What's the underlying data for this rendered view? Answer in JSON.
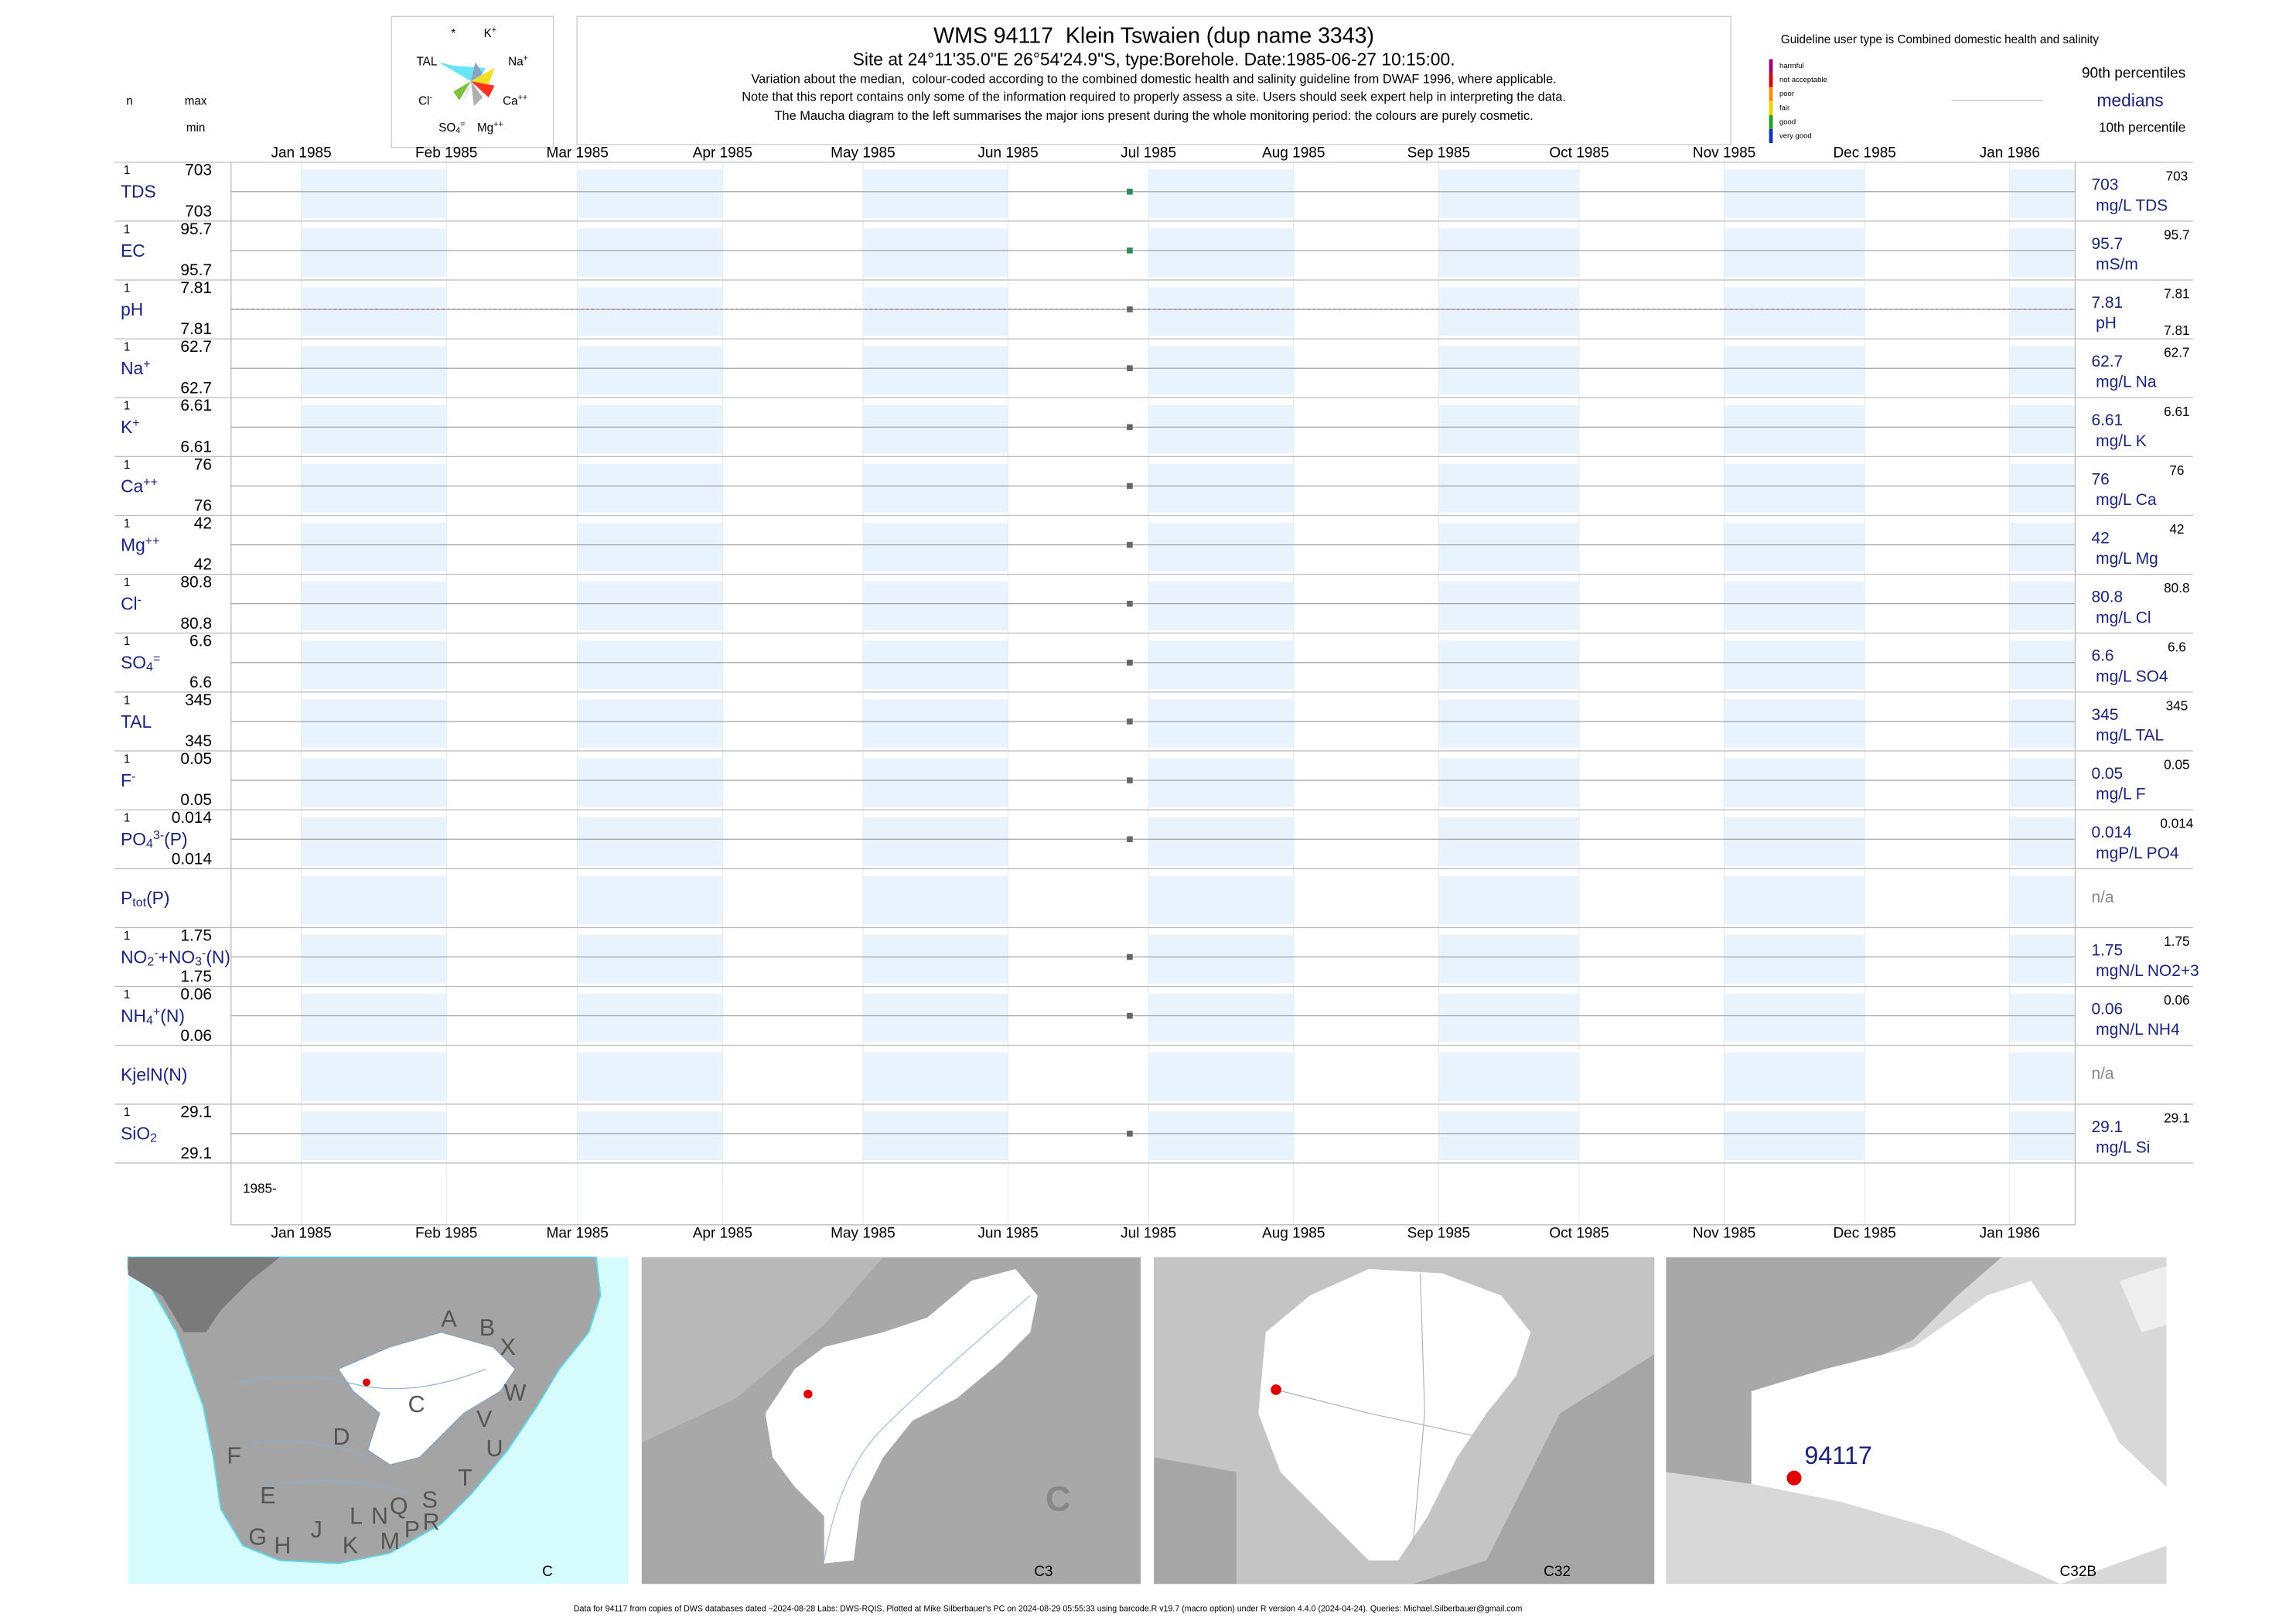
{
  "header": {
    "title": "WMS 94117  Klein Tswaien (dup name 3343)",
    "subtitle": "Site at 24°11'35.0\"E 26°54'24.9\"S, type:Borehole. Date:1985-06-27 10:15:00.",
    "notes": [
      "Variation about the median,  colour-coded according to the combined domestic health and salinity guideline from DWAF 1996, where applicable.",
      "Note that this report contains only some of the information required to properly assess a site. Users should seek expert help in interpreting the data.",
      "The Maucha diagram to the left summarises the major ions present during the whole monitoring period: the colours are purely cosmetic."
    ]
  },
  "column_heads": {
    "n": "n",
    "max": "max",
    "min": "min"
  },
  "legend": {
    "title": "Guideline user type is Combined domestic health and salinity",
    "classes": [
      {
        "label": "harmful",
        "color": "#a0006e"
      },
      {
        "label": "not acceptable",
        "color": "#e00000"
      },
      {
        "label": "poor",
        "color": "#ff8c00"
      },
      {
        "label": "fair",
        "color": "#f0d000"
      },
      {
        "label": "good",
        "color": "#20a020"
      },
      {
        "label": "very good",
        "color": "#1030c0"
      }
    ],
    "p90": "90th percentiles",
    "median": "medians",
    "p10": "10th percentile"
  },
  "maucha": {
    "labels": [
      [
        {
          "text": "*"
        }
      ],
      [
        {
          "text": "K"
        },
        {
          "text": "+",
          "pos": "sup"
        }
      ],
      [
        {
          "text": "TAL"
        }
      ],
      [
        {
          "text": "Na"
        },
        {
          "text": "+",
          "pos": "sup"
        }
      ],
      [
        {
          "text": "Cl"
        },
        {
          "text": "-",
          "pos": "sup"
        }
      ],
      [
        {
          "text": "Ca"
        },
        {
          "text": "++",
          "pos": "sup"
        }
      ],
      [
        {
          "text": "SO"
        },
        {
          "text": "4",
          "pos": "sub"
        },
        {
          "text": "=",
          "pos": "sup"
        }
      ],
      [
        {
          "text": "Mg"
        },
        {
          "text": "++",
          "pos": "sup"
        }
      ]
    ]
  },
  "time_axis": {
    "xlim": [
      "1984-12-17",
      "1986-01-15"
    ],
    "xticks": [
      {
        "value": "1985-01-01",
        "label": "Jan 1985"
      },
      {
        "value": "1985-02-01",
        "label": "Feb 1985"
      },
      {
        "value": "1985-03-01",
        "label": "Mar 1985"
      },
      {
        "value": "1985-04-01",
        "label": "Apr 1985"
      },
      {
        "value": "1985-05-01",
        "label": "May 1985"
      },
      {
        "value": "1985-06-01",
        "label": "Jun 1985"
      },
      {
        "value": "1985-07-01",
        "label": "Jul 1985"
      },
      {
        "value": "1985-08-01",
        "label": "Aug 1985"
      },
      {
        "value": "1985-09-01",
        "label": "Sep 1985"
      },
      {
        "value": "1985-10-01",
        "label": "Oct 1985"
      },
      {
        "value": "1985-11-01",
        "label": "Nov 1985"
      },
      {
        "value": "1985-12-01",
        "label": "Dec 1985"
      },
      {
        "value": "1986-01-01",
        "label": "Jan 1986"
      }
    ],
    "start_label": "1985-"
  },
  "chart_data": [
    {
      "type": "scatter",
      "parts": [
        {
          "text": "TDS"
        }
      ],
      "n": 1,
      "max": 703,
      "min": 703,
      "x": [
        "1985-06-27"
      ],
      "values": [
        703
      ],
      "median": 703,
      "p90": 703,
      "unit": "mg/L TDS",
      "color": "#2e8b57"
    },
    {
      "type": "scatter",
      "parts": [
        {
          "text": "EC"
        }
      ],
      "n": 1,
      "max": 95.7,
      "min": 95.7,
      "x": [
        "1985-06-27"
      ],
      "values": [
        95.7
      ],
      "median": 95.7,
      "p90": 95.7,
      "unit": "mS/m",
      "color": "#2e8b57"
    },
    {
      "type": "scatter",
      "parts": [
        {
          "text": "pH"
        }
      ],
      "n": 1,
      "max": 7.81,
      "min": 7.81,
      "x": [
        "1985-06-27"
      ],
      "values": [
        7.81
      ],
      "median": 7.81,
      "p90": 7.81,
      "p10": 7.81,
      "unit": "pH",
      "color": "#666666",
      "guideline_color": "#e07070"
    },
    {
      "type": "scatter",
      "parts": [
        {
          "text": "Na"
        },
        {
          "text": "+",
          "pos": "sup"
        }
      ],
      "n": 1,
      "max": 62.7,
      "min": 62.7,
      "x": [
        "1985-06-27"
      ],
      "values": [
        62.7
      ],
      "median": 62.7,
      "p90": 62.7,
      "unit": "mg/L Na",
      "color": "#666666"
    },
    {
      "type": "scatter",
      "parts": [
        {
          "text": "K"
        },
        {
          "text": "+",
          "pos": "sup"
        }
      ],
      "n": 1,
      "max": 6.61,
      "min": 6.61,
      "x": [
        "1985-06-27"
      ],
      "values": [
        6.61
      ],
      "median": 6.61,
      "p90": 6.61,
      "unit": "mg/L K",
      "color": "#666666"
    },
    {
      "type": "scatter",
      "parts": [
        {
          "text": "Ca"
        },
        {
          "text": "++",
          "pos": "sup"
        }
      ],
      "n": 1,
      "max": 76,
      "min": 76,
      "x": [
        "1985-06-27"
      ],
      "values": [
        76
      ],
      "median": 76,
      "p90": 76,
      "unit": "mg/L Ca",
      "color": "#666666"
    },
    {
      "type": "scatter",
      "parts": [
        {
          "text": "Mg"
        },
        {
          "text": "++",
          "pos": "sup"
        }
      ],
      "n": 1,
      "max": 42,
      "min": 42,
      "x": [
        "1985-06-27"
      ],
      "values": [
        42
      ],
      "median": 42,
      "p90": 42,
      "unit": "mg/L Mg",
      "color": "#666666"
    },
    {
      "type": "scatter",
      "parts": [
        {
          "text": "Cl"
        },
        {
          "text": "-",
          "pos": "sup"
        }
      ],
      "n": 1,
      "max": 80.8,
      "min": 80.8,
      "x": [
        "1985-06-27"
      ],
      "values": [
        80.8
      ],
      "median": 80.8,
      "p90": 80.8,
      "unit": "mg/L Cl",
      "color": "#666666"
    },
    {
      "type": "scatter",
      "parts": [
        {
          "text": "SO"
        },
        {
          "text": "4",
          "pos": "sub"
        },
        {
          "text": "=",
          "pos": "sup"
        }
      ],
      "n": 1,
      "max": 6.6,
      "min": 6.6,
      "x": [
        "1985-06-27"
      ],
      "values": [
        6.6
      ],
      "median": 6.6,
      "p90": 6.6,
      "unit": "mg/L SO4",
      "color": "#666666"
    },
    {
      "type": "scatter",
      "parts": [
        {
          "text": "TAL"
        }
      ],
      "n": 1,
      "max": 345,
      "min": 345,
      "x": [
        "1985-06-27"
      ],
      "values": [
        345
      ],
      "median": 345,
      "p90": 345,
      "unit": "mg/L TAL",
      "color": "#666666"
    },
    {
      "type": "scatter",
      "parts": [
        {
          "text": "F"
        },
        {
          "text": "-",
          "pos": "sup"
        }
      ],
      "n": 1,
      "max": 0.05,
      "min": 0.05,
      "x": [
        "1985-06-27"
      ],
      "values": [
        0.05
      ],
      "median": 0.05,
      "p90": 0.05,
      "unit": "mg/L F",
      "color": "#666666"
    },
    {
      "type": "scatter",
      "parts": [
        {
          "text": "PO"
        },
        {
          "text": "4",
          "pos": "sub"
        },
        {
          "text": "3-",
          "pos": "sup"
        },
        {
          "text": "(P)"
        }
      ],
      "n": 1,
      "max": 0.014,
      "min": 0.014,
      "x": [
        "1985-06-27"
      ],
      "values": [
        0.014
      ],
      "median": 0.014,
      "p90": 0.014,
      "unit": "mgP/L PO4",
      "color": "#666666"
    },
    {
      "type": "scatter",
      "parts": [
        {
          "text": "P"
        },
        {
          "text": "tot",
          "pos": "sub"
        },
        {
          "text": "(P)"
        }
      ],
      "median_label": "n/a"
    },
    {
      "type": "scatter",
      "parts": [
        {
          "text": "NO"
        },
        {
          "text": "2",
          "pos": "sub"
        },
        {
          "text": "-",
          "pos": "sup"
        },
        {
          "text": "+NO"
        },
        {
          "text": "3",
          "pos": "sub"
        },
        {
          "text": "-",
          "pos": "sup"
        },
        {
          "text": "(N)"
        }
      ],
      "n": 1,
      "max": 1.75,
      "min": 1.75,
      "x": [
        "1985-06-27"
      ],
      "values": [
        1.75
      ],
      "median": 1.75,
      "p90": 1.75,
      "unit": "mgN/L NO2+3",
      "color": "#666666"
    },
    {
      "type": "scatter",
      "parts": [
        {
          "text": "NH"
        },
        {
          "text": "4",
          "pos": "sub"
        },
        {
          "text": "+",
          "pos": "sup"
        },
        {
          "text": "(N)"
        }
      ],
      "n": 1,
      "max": 0.06,
      "min": 0.06,
      "x": [
        "1985-06-27"
      ],
      "values": [
        0.06
      ],
      "median": 0.06,
      "p90": 0.06,
      "unit": "mgN/L NH4",
      "color": "#666666"
    },
    {
      "type": "scatter",
      "parts": [
        {
          "text": "KjelN(N)"
        }
      ],
      "median_label": "n/a"
    },
    {
      "type": "scatter",
      "parts": [
        {
          "text": "SiO"
        },
        {
          "text": "2",
          "pos": "sub"
        }
      ],
      "n": 1,
      "max": 29.1,
      "min": 29.1,
      "x": [
        "1985-06-27"
      ],
      "values": [
        29.1
      ],
      "median": 29.1,
      "p90": 29.1,
      "unit": "mg/L Si",
      "color": "#666666"
    }
  ],
  "maps": {
    "panels": [
      "C",
      "C3",
      "C32",
      "C32B"
    ],
    "drainage_regions": [
      "A",
      "B",
      "X",
      "W",
      "C",
      "D",
      "V",
      "U",
      "T",
      "F",
      "E",
      "G",
      "H",
      "J",
      "K",
      "L",
      "N",
      "M",
      "P",
      "Q",
      "S",
      "R"
    ],
    "station": "94117"
  },
  "footer": "Data for 94117 from copies of DWS databases dated ~2024-08-28 Labs: DWS-RQIS. Plotted at Mike Silberbauer's PC on 2024-08-29 05:55:33 using barcode.R v19.7 (macro option) under R version 4.4.0 (2024-04-24). Queries: Michael.Silberbauer@gmail.com"
}
